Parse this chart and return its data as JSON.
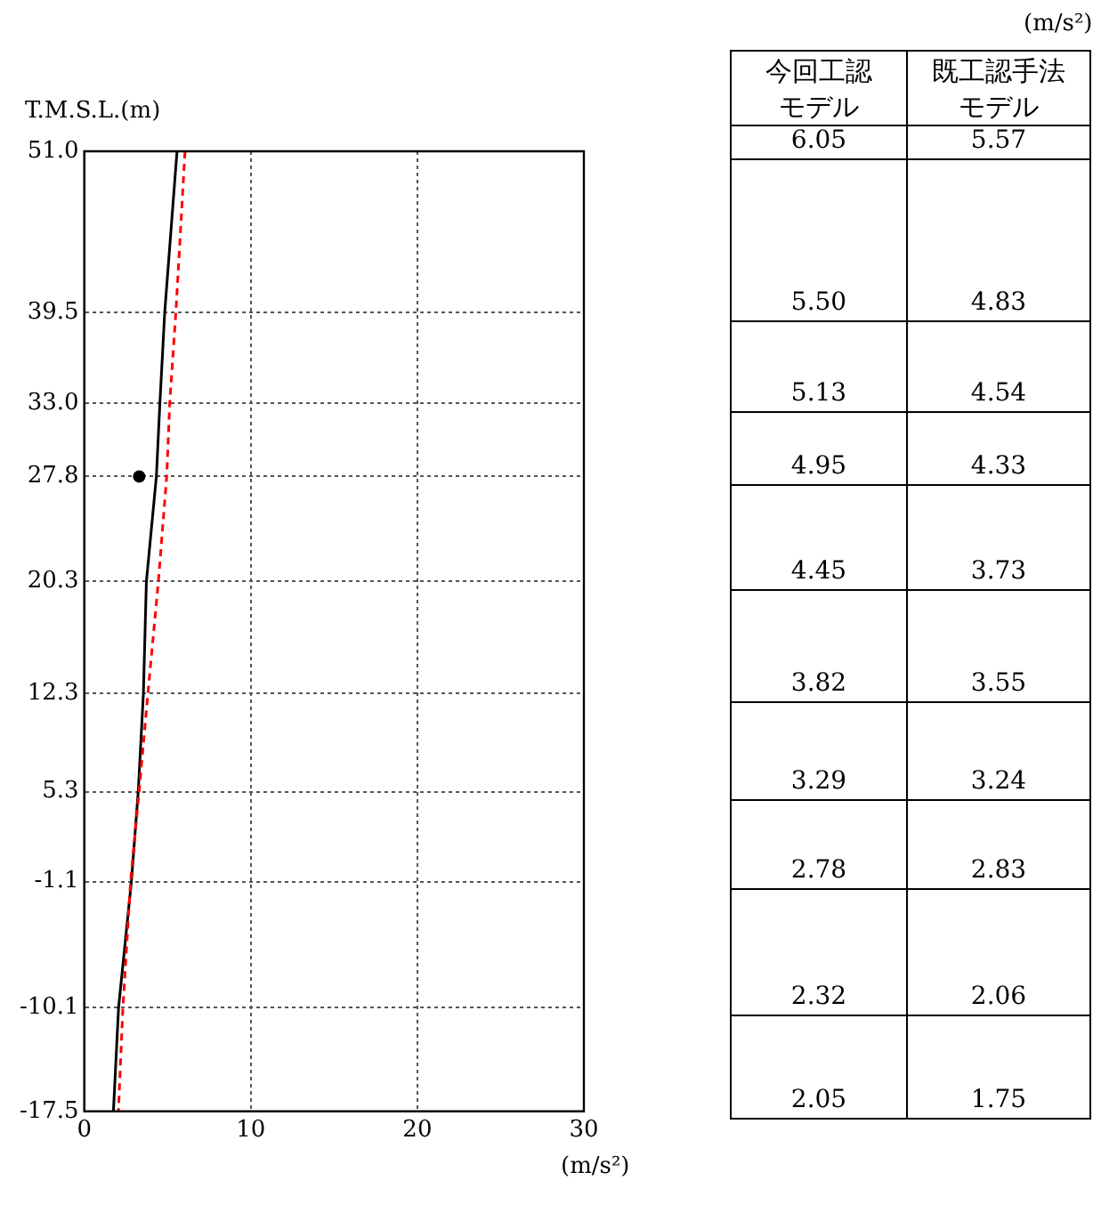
{
  "chart_data": [
    {
      "type": "line",
      "xlabel": "(m/s²)",
      "ylabel": "T.M.S.L.(m)",
      "xlim": [
        0,
        30
      ],
      "xticks": [
        0,
        10,
        20,
        30
      ],
      "ylim": [
        -17.5,
        51
      ],
      "yticks": [
        {
          "value": 51,
          "label": "51.0"
        },
        39.5,
        {
          "value": 33,
          "label": "33.0"
        },
        27.8,
        20.3,
        12.3,
        5.3,
        -1.1,
        -10.1,
        -17.5
      ],
      "grid": true,
      "marker": "none",
      "series": [
        {
          "color": "#ff0000",
          "line_style": "dashed",
          "x": [
            6.05,
            5.5,
            5.13,
            4.95,
            4.45,
            3.82,
            3.29,
            2.78,
            2.32,
            2.05
          ],
          "values": [
            51,
            39.5,
            33,
            27.8,
            20.3,
            12.3,
            5.3,
            -1.1,
            -10.1,
            -17.5
          ]
        },
        {
          "color": "#000000",
          "line_style": "solid",
          "x": [
            5.57,
            4.83,
            4.54,
            4.33,
            3.73,
            3.55,
            3.24,
            2.83,
            2.06,
            1.75
          ],
          "values": [
            51,
            39.5,
            33,
            27.8,
            20.3,
            12.3,
            5.3,
            -1.1,
            -10.1,
            -17.5
          ]
        },
        {
          "type": "scatter",
          "color": "#000000",
          "marker": "circle",
          "x": [
            3.3
          ],
          "values": [
            27.8
          ]
        }
      ]
    },
    {
      "type": "other",
      "annotations": [
        "(m/s²)",
        "今回工認モデル",
        "既工認手法モデル",
        "6.05",
        "5.57",
        "5.50",
        "4.83",
        "5.13",
        "4.54",
        "4.95",
        "4.33",
        "4.45",
        "3.73",
        "3.82",
        "3.55",
        "3.29",
        "3.24",
        "2.78",
        "2.83",
        "2.32",
        "2.06",
        "2.05",
        "1.75"
      ]
    }
  ]
}
